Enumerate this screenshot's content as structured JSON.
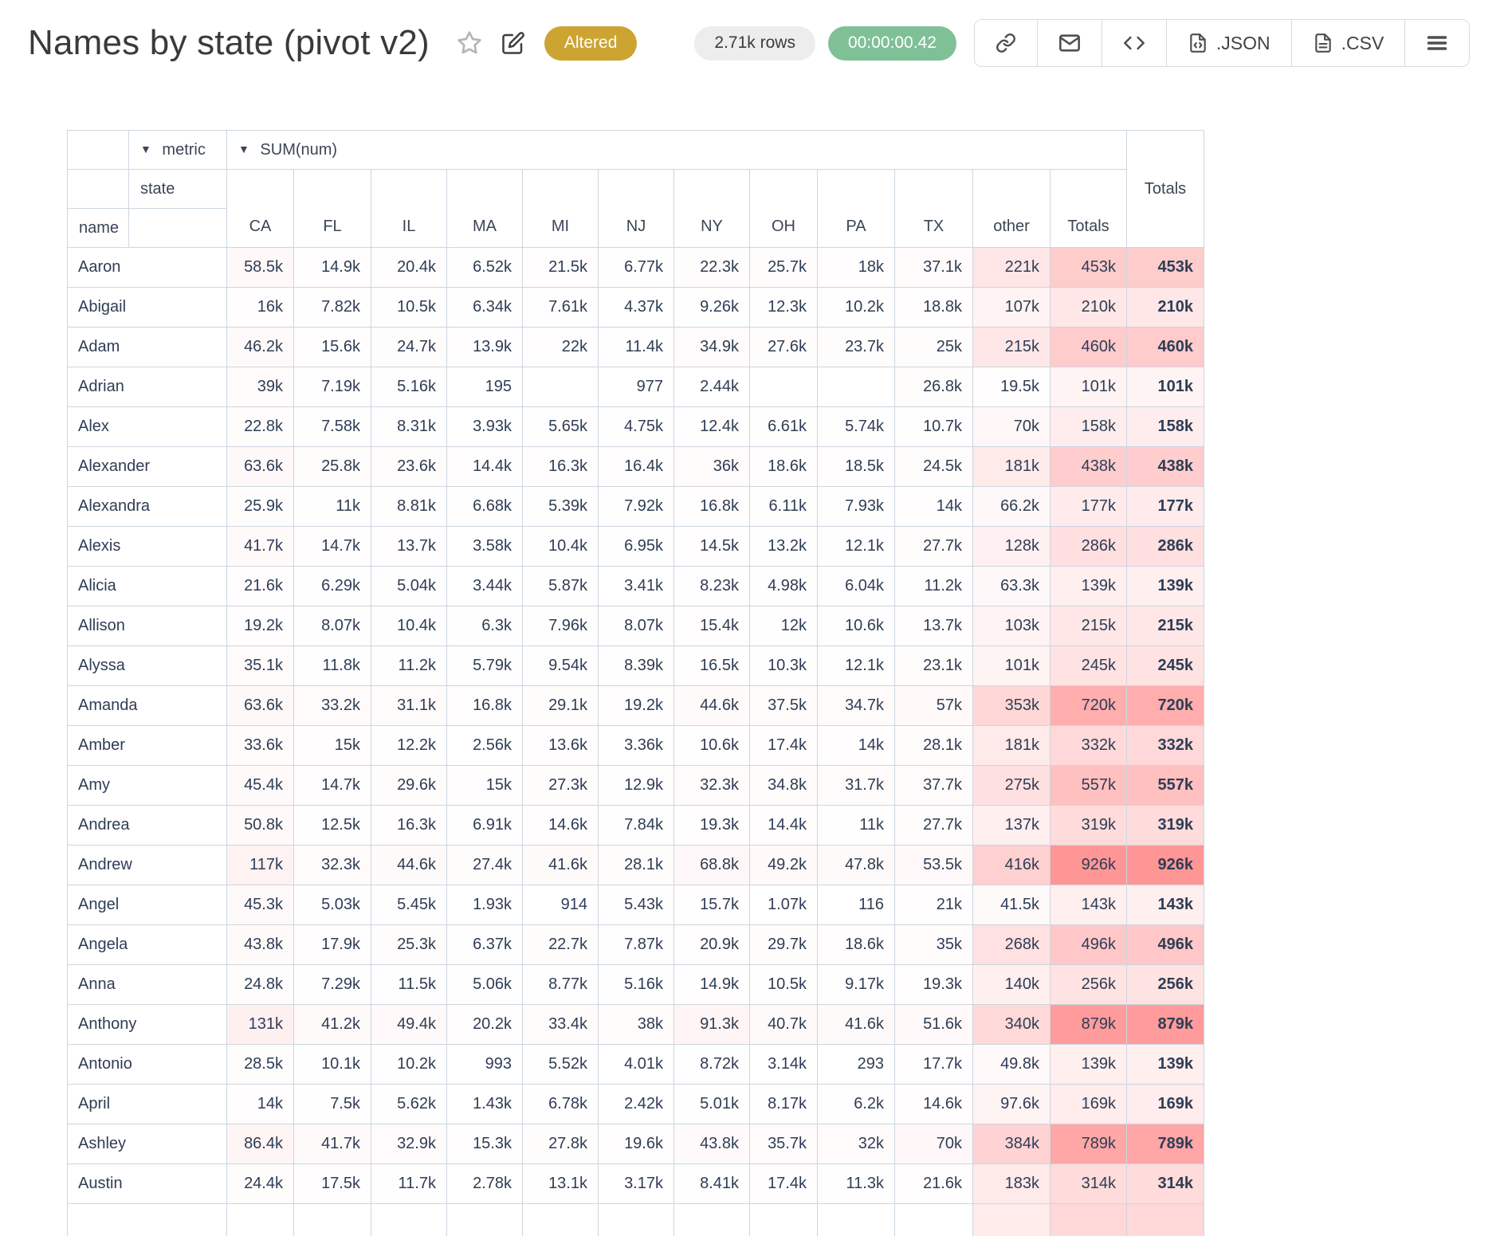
{
  "header": {
    "title": "Names by state (pivot v2)",
    "badges": {
      "status": "Altered",
      "rows": "2.71k rows",
      "timer": "00:00:00.42"
    },
    "buttons": {
      "json_label": ".JSON",
      "csv_label": ".CSV"
    },
    "icons": [
      "star-icon",
      "edit-icon",
      "link-icon",
      "mail-icon",
      "code-icon",
      "file-code-icon",
      "file-text-icon",
      "menu-icon"
    ]
  },
  "colors": {
    "status_badge_bg": "#cda431",
    "rows_badge_bg": "#ededed",
    "timer_badge_bg": "#7fc097",
    "table_border": "#ccd6e0",
    "table_text": "#2f3d55",
    "heat_full": "#ff9696"
  },
  "pivot": {
    "metric_label": "metric",
    "metric_value": "SUM(num)",
    "col_attr": "state",
    "row_attr": "name",
    "totals_label": "Totals",
    "dropdown_glyph": "▼",
    "columns": [
      "CA",
      "FL",
      "IL",
      "MA",
      "MI",
      "NJ",
      "NY",
      "OH",
      "PA",
      "TX",
      "other",
      "Totals"
    ],
    "heatmap": {
      "min": 116,
      "max": 2250000
    },
    "rows": [
      {
        "name": "Aaron",
        "cells": [
          "58.5k",
          "14.9k",
          "20.4k",
          "6.52k",
          "21.5k",
          "6.77k",
          "22.3k",
          "25.7k",
          "18k",
          "37.1k",
          "221k"
        ],
        "total": "453k",
        "grand": "453k"
      },
      {
        "name": "Abigail",
        "cells": [
          "16k",
          "7.82k",
          "10.5k",
          "6.34k",
          "7.61k",
          "4.37k",
          "9.26k",
          "12.3k",
          "10.2k",
          "18.8k",
          "107k"
        ],
        "total": "210k",
        "grand": "210k"
      },
      {
        "name": "Adam",
        "cells": [
          "46.2k",
          "15.6k",
          "24.7k",
          "13.9k",
          "22k",
          "11.4k",
          "34.9k",
          "27.6k",
          "23.7k",
          "25k",
          "215k"
        ],
        "total": "460k",
        "grand": "460k"
      },
      {
        "name": "Adrian",
        "cells": [
          "39k",
          "7.19k",
          "5.16k",
          "195",
          "",
          "977",
          "2.44k",
          "",
          "",
          "26.8k",
          "19.5k"
        ],
        "total": "101k",
        "grand": "101k"
      },
      {
        "name": "Alex",
        "cells": [
          "22.8k",
          "7.58k",
          "8.31k",
          "3.93k",
          "5.65k",
          "4.75k",
          "12.4k",
          "6.61k",
          "5.74k",
          "10.7k",
          "70k"
        ],
        "total": "158k",
        "grand": "158k"
      },
      {
        "name": "Alexander",
        "cells": [
          "63.6k",
          "25.8k",
          "23.6k",
          "14.4k",
          "16.3k",
          "16.4k",
          "36k",
          "18.6k",
          "18.5k",
          "24.5k",
          "181k"
        ],
        "total": "438k",
        "grand": "438k"
      },
      {
        "name": "Alexandra",
        "cells": [
          "25.9k",
          "11k",
          "8.81k",
          "6.68k",
          "5.39k",
          "7.92k",
          "16.8k",
          "6.11k",
          "7.93k",
          "14k",
          "66.2k"
        ],
        "total": "177k",
        "grand": "177k"
      },
      {
        "name": "Alexis",
        "cells": [
          "41.7k",
          "14.7k",
          "13.7k",
          "3.58k",
          "10.4k",
          "6.95k",
          "14.5k",
          "13.2k",
          "12.1k",
          "27.7k",
          "128k"
        ],
        "total": "286k",
        "grand": "286k"
      },
      {
        "name": "Alicia",
        "cells": [
          "21.6k",
          "6.29k",
          "5.04k",
          "3.44k",
          "5.87k",
          "3.41k",
          "8.23k",
          "4.98k",
          "6.04k",
          "11.2k",
          "63.3k"
        ],
        "total": "139k",
        "grand": "139k"
      },
      {
        "name": "Allison",
        "cells": [
          "19.2k",
          "8.07k",
          "10.4k",
          "6.3k",
          "7.96k",
          "8.07k",
          "15.4k",
          "12k",
          "10.6k",
          "13.7k",
          "103k"
        ],
        "total": "215k",
        "grand": "215k"
      },
      {
        "name": "Alyssa",
        "cells": [
          "35.1k",
          "11.8k",
          "11.2k",
          "5.79k",
          "9.54k",
          "8.39k",
          "16.5k",
          "10.3k",
          "12.1k",
          "23.1k",
          "101k"
        ],
        "total": "245k",
        "grand": "245k"
      },
      {
        "name": "Amanda",
        "cells": [
          "63.6k",
          "33.2k",
          "31.1k",
          "16.8k",
          "29.1k",
          "19.2k",
          "44.6k",
          "37.5k",
          "34.7k",
          "57k",
          "353k"
        ],
        "total": "720k",
        "grand": "720k"
      },
      {
        "name": "Amber",
        "cells": [
          "33.6k",
          "15k",
          "12.2k",
          "2.56k",
          "13.6k",
          "3.36k",
          "10.6k",
          "17.4k",
          "14k",
          "28.1k",
          "181k"
        ],
        "total": "332k",
        "grand": "332k"
      },
      {
        "name": "Amy",
        "cells": [
          "45.4k",
          "14.7k",
          "29.6k",
          "15k",
          "27.3k",
          "12.9k",
          "32.3k",
          "34.8k",
          "31.7k",
          "37.7k",
          "275k"
        ],
        "total": "557k",
        "grand": "557k"
      },
      {
        "name": "Andrea",
        "cells": [
          "50.8k",
          "12.5k",
          "16.3k",
          "6.91k",
          "14.6k",
          "7.84k",
          "19.3k",
          "14.4k",
          "11k",
          "27.7k",
          "137k"
        ],
        "total": "319k",
        "grand": "319k"
      },
      {
        "name": "Andrew",
        "cells": [
          "117k",
          "32.3k",
          "44.6k",
          "27.4k",
          "41.6k",
          "28.1k",
          "68.8k",
          "49.2k",
          "47.8k",
          "53.5k",
          "416k"
        ],
        "total": "926k",
        "grand": "926k"
      },
      {
        "name": "Angel",
        "cells": [
          "45.3k",
          "5.03k",
          "5.45k",
          "1.93k",
          "914",
          "5.43k",
          "15.7k",
          "1.07k",
          "116",
          "21k",
          "41.5k"
        ],
        "total": "143k",
        "grand": "143k"
      },
      {
        "name": "Angela",
        "cells": [
          "43.8k",
          "17.9k",
          "25.3k",
          "6.37k",
          "22.7k",
          "7.87k",
          "20.9k",
          "29.7k",
          "18.6k",
          "35k",
          "268k"
        ],
        "total": "496k",
        "grand": "496k"
      },
      {
        "name": "Anna",
        "cells": [
          "24.8k",
          "7.29k",
          "11.5k",
          "5.06k",
          "8.77k",
          "5.16k",
          "14.9k",
          "10.5k",
          "9.17k",
          "19.3k",
          "140k"
        ],
        "total": "256k",
        "grand": "256k"
      },
      {
        "name": "Anthony",
        "cells": [
          "131k",
          "41.2k",
          "49.4k",
          "20.2k",
          "33.4k",
          "38k",
          "91.3k",
          "40.7k",
          "41.6k",
          "51.6k",
          "340k"
        ],
        "total": "879k",
        "grand": "879k"
      },
      {
        "name": "Antonio",
        "cells": [
          "28.5k",
          "10.1k",
          "10.2k",
          "993",
          "5.52k",
          "4.01k",
          "8.72k",
          "3.14k",
          "293",
          "17.7k",
          "49.8k"
        ],
        "total": "139k",
        "grand": "139k"
      },
      {
        "name": "April",
        "cells": [
          "14k",
          "7.5k",
          "5.62k",
          "1.43k",
          "6.78k",
          "2.42k",
          "5.01k",
          "8.17k",
          "6.2k",
          "14.6k",
          "97.6k"
        ],
        "total": "169k",
        "grand": "169k"
      },
      {
        "name": "Ashley",
        "cells": [
          "86.4k",
          "41.7k",
          "32.9k",
          "15.3k",
          "27.8k",
          "19.6k",
          "43.8k",
          "35.7k",
          "32k",
          "70k",
          "384k"
        ],
        "total": "789k",
        "grand": "789k"
      },
      {
        "name": "Austin",
        "cells": [
          "24.4k",
          "17.5k",
          "11.7k",
          "2.78k",
          "13.1k",
          "3.17k",
          "8.41k",
          "17.4k",
          "11.3k",
          "21.6k",
          "183k"
        ],
        "total": "314k",
        "grand": "314k"
      }
    ]
  }
}
